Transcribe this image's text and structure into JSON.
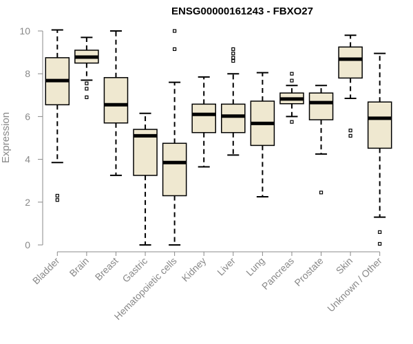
{
  "chart_data": {
    "type": "boxplot",
    "title": "ENSG00000161243 - FBXO27",
    "xlabel": "",
    "ylabel": "Expression",
    "ylim": [
      0,
      10
    ],
    "yticks": [
      0,
      2,
      4,
      6,
      8,
      10
    ],
    "grid": false,
    "box_color": "#EFE8D0",
    "categories": [
      "Bladder",
      "Brain",
      "Breast",
      "Gastric",
      "Hematopoietic cells",
      "Kidney",
      "Liver",
      "Lung",
      "Pancreas",
      "Prostate",
      "Skin",
      "Unknown / Other"
    ],
    "boxes": [
      {
        "whisker_low": 3.85,
        "q1": 6.55,
        "median": 7.68,
        "q3": 8.75,
        "whisker_high": 10.05,
        "outliers": [
          2.3,
          2.1
        ]
      },
      {
        "whisker_low": 7.7,
        "q1": 8.5,
        "median": 8.78,
        "q3": 9.1,
        "whisker_high": 9.7,
        "outliers": [
          7.55,
          7.3,
          6.9
        ]
      },
      {
        "whisker_low": 3.25,
        "q1": 5.7,
        "median": 6.55,
        "q3": 7.82,
        "whisker_high": 10.0,
        "outliers": []
      },
      {
        "whisker_low": 0.0,
        "q1": 3.25,
        "median": 5.1,
        "q3": 5.4,
        "whisker_high": 6.15,
        "outliers": []
      },
      {
        "whisker_low": 0.0,
        "q1": 2.3,
        "median": 3.85,
        "q3": 4.75,
        "whisker_high": 7.6,
        "outliers": [
          10.0,
          9.15
        ]
      },
      {
        "whisker_low": 3.65,
        "q1": 5.25,
        "median": 6.1,
        "q3": 6.58,
        "whisker_high": 7.85,
        "outliers": []
      },
      {
        "whisker_low": 4.2,
        "q1": 5.25,
        "median": 6.02,
        "q3": 6.58,
        "whisker_high": 8.0,
        "outliers": [
          9.15,
          8.95,
          8.75,
          8.6
        ]
      },
      {
        "whisker_low": 2.25,
        "q1": 4.65,
        "median": 5.68,
        "q3": 6.72,
        "whisker_high": 8.05,
        "outliers": []
      },
      {
        "whisker_low": 6.0,
        "q1": 6.6,
        "median": 6.82,
        "q3": 7.1,
        "whisker_high": 7.45,
        "outliers": [
          8.0,
          7.68,
          5.75
        ]
      },
      {
        "whisker_low": 4.25,
        "q1": 5.85,
        "median": 6.65,
        "q3": 7.1,
        "whisker_high": 7.45,
        "outliers": [
          2.45
        ]
      },
      {
        "whisker_low": 6.85,
        "q1": 7.8,
        "median": 8.68,
        "q3": 9.25,
        "whisker_high": 9.8,
        "outliers": [
          5.35,
          5.1
        ]
      },
      {
        "whisker_low": 1.3,
        "q1": 4.52,
        "median": 5.92,
        "q3": 6.68,
        "whisker_high": 8.95,
        "outliers": [
          0.6,
          0.05
        ]
      }
    ]
  }
}
